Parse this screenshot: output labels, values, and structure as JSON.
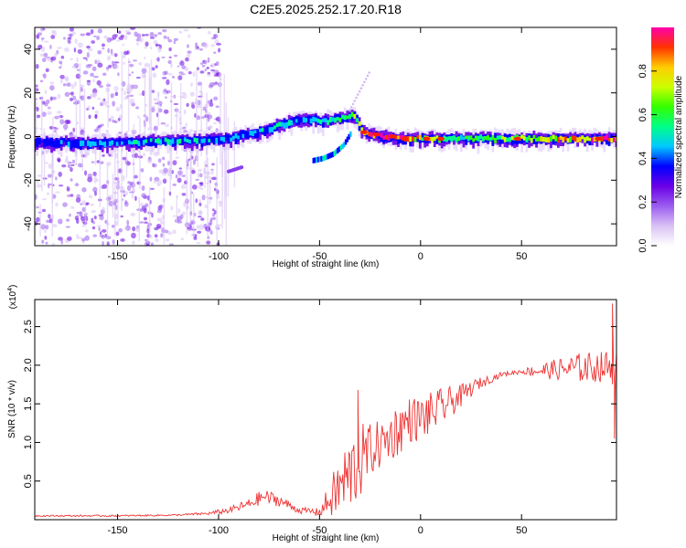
{
  "title": "C2E5.2025.252.17.20.R18",
  "chart_data": [
    {
      "type": "heatmap",
      "name": "spectrogram",
      "xlabel": "Height of straight line (km)",
      "ylabel": "Frequency (Hz)",
      "xlim": [
        -191,
        97
      ],
      "ylim": [
        -50,
        50
      ],
      "xticks": [
        -150,
        -100,
        -50,
        0,
        50
      ],
      "yticks": [
        -40,
        -20,
        0,
        20,
        40
      ],
      "colorbar": {
        "label": "Normalized spectral amplitude",
        "range": [
          0,
          1
        ],
        "ticks": [
          "0.0",
          "0.2",
          "0.4",
          "0.6",
          "0.8"
        ],
        "colors": [
          "#ffffff",
          "#d9c2f5",
          "#9b5cf0",
          "#6a00e6",
          "#0000ff",
          "#00c8ff",
          "#00ff88",
          "#33ff00",
          "#ccff00",
          "#ffcc00",
          "#ff3300",
          "#ff00aa"
        ]
      },
      "main_trace": {
        "x": [
          -191,
          -170,
          -150,
          -130,
          -110,
          -95,
          -80,
          -70,
          -62,
          -55,
          -48,
          -40,
          -33,
          -28,
          -20,
          -10,
          0,
          20,
          40,
          60,
          80,
          97
        ],
        "freq": [
          -3,
          -3,
          -3,
          -2,
          -2,
          -1,
          2,
          5,
          7,
          8,
          7,
          8,
          10,
          2,
          0,
          -1,
          -1,
          -1,
          -1,
          -1,
          -1,
          -1
        ],
        "amplitude": [
          0.35,
          0.4,
          0.42,
          0.45,
          0.45,
          0.4,
          0.45,
          0.5,
          0.45,
          0.4,
          0.5,
          0.55,
          0.6,
          0.9,
          0.95,
          0.92,
          0.7,
          0.6,
          0.6,
          0.7,
          0.8,
          0.95
        ]
      },
      "secondary_trace": {
        "x": [
          -53,
          -48,
          -43,
          -38,
          -34
        ],
        "freq": [
          -11,
          -10,
          -8,
          -4,
          2
        ]
      }
    },
    {
      "type": "line",
      "name": "snr",
      "xlabel": "Height of straight line (km)",
      "ylabel": "SNR (10 * v/v)",
      "multiplier": "(x10",
      "multiplier_exp": "4",
      "multiplier_close": ")",
      "xlim": [
        -191,
        97
      ],
      "ylim": [
        0,
        2.85
      ],
      "xticks": [
        -150,
        -100,
        -50,
        0,
        50
      ],
      "yticks": [
        0.5,
        1.0,
        1.5,
        2.0,
        2.5
      ],
      "yticklabels": [
        "0.5",
        "1.0",
        "1.5",
        "2.0",
        "2.5"
      ],
      "color": "#ee3333",
      "envelope": {
        "x": [
          -191,
          -150,
          -120,
          -105,
          -95,
          -85,
          -78,
          -70,
          -60,
          -50,
          -42,
          -36,
          -30,
          -25,
          -18,
          -12,
          -5,
          0,
          10,
          20,
          28,
          40,
          50,
          60,
          70,
          80,
          90,
          97
        ],
        "base": [
          0.05,
          0.05,
          0.06,
          0.08,
          0.12,
          0.2,
          0.3,
          0.25,
          0.12,
          0.1,
          0.35,
          0.55,
          0.75,
          0.9,
          1.0,
          1.15,
          1.3,
          1.3,
          1.45,
          1.6,
          1.75,
          1.88,
          1.92,
          1.93,
          1.95,
          1.97,
          1.98,
          1.98
        ],
        "noise": [
          0.01,
          0.01,
          0.01,
          0.02,
          0.04,
          0.07,
          0.1,
          0.08,
          0.04,
          0.05,
          0.35,
          0.5,
          0.5,
          0.35,
          0.3,
          0.35,
          0.3,
          0.3,
          0.25,
          0.15,
          0.08,
          0.03,
          0.03,
          0.1,
          0.15,
          0.2,
          0.2,
          0.25
        ]
      },
      "annotated_peaks": [
        {
          "x": -31,
          "y": 1.68
        },
        {
          "x": -52,
          "y": 0.05
        },
        {
          "x": 95,
          "y": 2.8
        },
        {
          "x": 96,
          "y": 1.05
        }
      ]
    }
  ]
}
